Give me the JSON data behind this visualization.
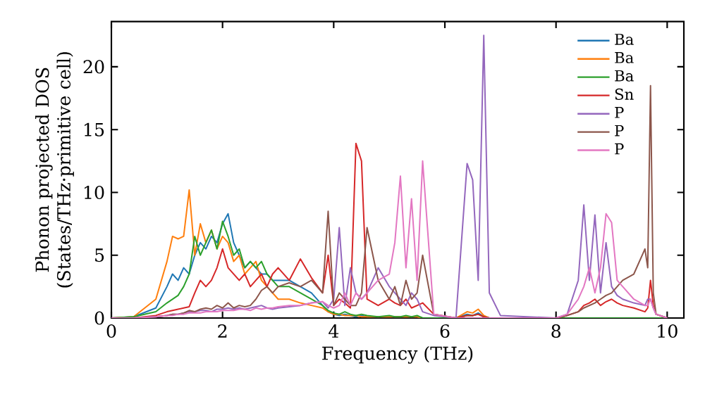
{
  "chart_data": {
    "type": "line",
    "xlabel": "Frequency (THz)",
    "ylabel": "Phonon projected DOS (States/THz·primitive cell)",
    "xlim": [
      0,
      10.3
    ],
    "ylim": [
      0,
      23.6
    ],
    "xticks": [
      0,
      2,
      4,
      6,
      8,
      10
    ],
    "yticks": [
      0,
      5,
      10,
      15,
      20
    ],
    "grid": false,
    "legend": "top right",
    "marker": "none",
    "line_style": "solid",
    "x": [
      0,
      0.4,
      0.8,
      1.0,
      1.1,
      1.2,
      1.3,
      1.4,
      1.5,
      1.6,
      1.7,
      1.8,
      1.9,
      2.0,
      2.1,
      2.2,
      2.3,
      2.4,
      2.5,
      2.6,
      2.7,
      2.8,
      2.9,
      3.0,
      3.2,
      3.4,
      3.6,
      3.8,
      3.9,
      4.0,
      4.1,
      4.2,
      4.3,
      4.4,
      4.5,
      4.6,
      4.8,
      5.0,
      5.1,
      5.2,
      5.3,
      5.4,
      5.5,
      5.6,
      5.8,
      6.2,
      6.4,
      6.5,
      6.6,
      6.7,
      6.8,
      7.0,
      8.0,
      8.2,
      8.4,
      8.5,
      8.6,
      8.7,
      8.8,
      8.9,
      9.0,
      9.1,
      9.2,
      9.4,
      9.6,
      9.65,
      9.7,
      9.75,
      9.8,
      10.0
    ],
    "series": [
      {
        "name": "Ba",
        "color": "#1f77b4",
        "values": [
          0,
          0.1,
          0.8,
          2.5,
          3.5,
          3,
          4,
          3.5,
          5,
          6,
          5.5,
          6.5,
          6,
          7.5,
          8.3,
          6,
          5,
          4,
          4.5,
          4,
          3.5,
          3.5,
          3,
          3,
          3,
          2.5,
          2,
          1,
          0.5,
          0.3,
          0.2,
          0.3,
          0.2,
          0.1,
          0.2,
          0.1,
          0.1,
          0.1,
          0.1,
          0.1,
          0.1,
          0.1,
          0.1,
          0,
          0,
          0,
          0.3,
          0.2,
          0.4,
          0.1,
          0,
          null,
          null,
          null,
          null,
          null,
          null,
          null,
          null,
          null,
          null,
          null,
          null,
          null,
          null,
          null,
          null,
          null,
          null,
          null
        ]
      },
      {
        "name": "Ba",
        "color": "#ff7f0e",
        "values": [
          0,
          0.1,
          1.5,
          4.5,
          6.5,
          6.3,
          6.5,
          10.2,
          5,
          7.5,
          6,
          7,
          5.5,
          6.5,
          6,
          4.5,
          5,
          3.5,
          4,
          4.5,
          3,
          2.5,
          2,
          1.5,
          1.5,
          1.2,
          1,
          0.8,
          0.5,
          0.3,
          0.3,
          0.2,
          0.2,
          0.2,
          0.1,
          0.1,
          0.1,
          0.1,
          0.1,
          0.1,
          0.1,
          0.1,
          0.1,
          0,
          0,
          0,
          0.5,
          0.4,
          0.7,
          0.2,
          0,
          0,
          null,
          null,
          null,
          null,
          null,
          null,
          null,
          null,
          null,
          null,
          null,
          null,
          null,
          null,
          null,
          null,
          null,
          null
        ]
      },
      {
        "name": "Ba",
        "color": "#2ca02c",
        "values": [
          0,
          0.1,
          0.5,
          1.2,
          1.5,
          1.8,
          2.5,
          3.5,
          6.5,
          5,
          6,
          7,
          5.5,
          7.7,
          6.5,
          5,
          5.5,
          4,
          4.5,
          4,
          4.5,
          3.5,
          3,
          2.5,
          2.5,
          2,
          1.5,
          1,
          0.6,
          0.4,
          0.3,
          0.5,
          0.3,
          0.2,
          0.3,
          0.2,
          0.1,
          0.2,
          0.1,
          0.1,
          0.2,
          0.1,
          0.2,
          0,
          0,
          0,
          0.2,
          0.2,
          0.3,
          0.1,
          0,
          0,
          0,
          0,
          0,
          0,
          0,
          0,
          0,
          0,
          0,
          0,
          0,
          0,
          0,
          0,
          0,
          0,
          0,
          0
        ]
      },
      {
        "name": "Sn",
        "color": "#d62728",
        "values": [
          0,
          0,
          0.2,
          0.5,
          0.6,
          0.7,
          0.8,
          0.9,
          2,
          3,
          2.5,
          3,
          4,
          5.5,
          4,
          3.5,
          3,
          3.5,
          2.5,
          3,
          3.5,
          2.5,
          3.5,
          4,
          3,
          4.7,
          3.2,
          2,
          5,
          1,
          1.5,
          1.2,
          0.8,
          13.9,
          12.5,
          1.5,
          1,
          1.5,
          1.2,
          1,
          1.5,
          0.8,
          1,
          1.2,
          0.3,
          0,
          0.2,
          0.2,
          0.3,
          0.1,
          0,
          0,
          0,
          0.2,
          0.5,
          1,
          1.2,
          1.5,
          1,
          1.3,
          1.5,
          1.2,
          1,
          0.8,
          0.5,
          0.8,
          3,
          1,
          0.3,
          0
        ]
      },
      {
        "name": "P",
        "color": "#9467bd",
        "values": [
          0,
          0,
          0.1,
          0.2,
          0.3,
          0.3,
          0.4,
          0.5,
          0.5,
          0.6,
          0.6,
          0.5,
          0.7,
          0.7,
          0.8,
          0.7,
          0.8,
          0.7,
          0.8,
          0.9,
          1,
          0.8,
          0.7,
          0.8,
          0.9,
          1,
          1.2,
          1.3,
          0.8,
          1.5,
          7.2,
          1,
          4,
          2,
          1.5,
          2,
          4,
          2.5,
          2,
          1.5,
          1,
          2,
          1.5,
          0.5,
          0.2,
          0,
          12.3,
          11,
          3,
          22.5,
          2,
          0.2,
          0,
          0.3,
          3,
          9,
          3,
          8.2,
          2,
          6,
          2.5,
          1.8,
          1.5,
          1.2,
          1,
          1.5,
          1.5,
          0.8,
          0.3,
          0
        ]
      },
      {
        "name": "P",
        "color": "#8c564b",
        "values": [
          0,
          0,
          0.1,
          0.2,
          0.3,
          0.3,
          0.4,
          0.6,
          0.5,
          0.7,
          0.8,
          0.7,
          1,
          0.8,
          1.2,
          0.8,
          1,
          0.9,
          1,
          1.5,
          2.2,
          2.5,
          2,
          2.5,
          2.8,
          2.5,
          3,
          2,
          8.5,
          1,
          2,
          1.5,
          1,
          1,
          2,
          7.2,
          3,
          1.5,
          2.5,
          1,
          3,
          1.5,
          2,
          5,
          0.3,
          0,
          0,
          0,
          0,
          0,
          0,
          0,
          0,
          0.2,
          0.5,
          0.8,
          1,
          1.2,
          1.5,
          1.8,
          2,
          2.5,
          3,
          3.5,
          5.5,
          4,
          18.5,
          2,
          0.3,
          0
        ]
      },
      {
        "name": "P",
        "color": "#e377c2",
        "values": [
          0,
          0,
          0.1,
          0.2,
          0.2,
          0.3,
          0.3,
          0.4,
          0.4,
          0.4,
          0.5,
          0.5,
          0.5,
          0.6,
          0.6,
          0.6,
          0.7,
          0.7,
          0.6,
          0.8,
          0.7,
          0.8,
          0.8,
          0.9,
          1,
          1,
          1.2,
          1.3,
          1,
          0.8,
          1,
          2,
          1,
          2,
          1.5,
          2,
          3,
          3.5,
          6,
          11.3,
          4,
          9.5,
          3,
          12.5,
          0.3,
          0,
          0,
          0,
          0,
          0,
          0,
          0,
          0,
          0.3,
          1.5,
          2.5,
          4,
          2,
          4,
          8.3,
          7.6,
          3,
          2.5,
          1.5,
          1,
          1,
          1.5,
          0.8,
          0.3,
          0
        ]
      }
    ]
  }
}
